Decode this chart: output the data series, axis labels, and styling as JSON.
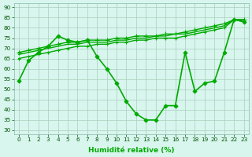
{
  "title": "",
  "xlabel": "Humidité relative (%)",
  "ylabel": "",
  "bg_color": "#d8f5ee",
  "grid_color": "#aacfbb",
  "line_color": "#00aa00",
  "xlim": [
    -0.5,
    23.5
  ],
  "ylim": [
    28,
    92
  ],
  "yticks": [
    30,
    35,
    40,
    45,
    50,
    55,
    60,
    65,
    70,
    75,
    80,
    85,
    90
  ],
  "xticks": [
    0,
    1,
    2,
    3,
    4,
    5,
    6,
    7,
    8,
    9,
    10,
    11,
    12,
    13,
    14,
    15,
    16,
    17,
    18,
    19,
    20,
    21,
    22,
    23
  ],
  "series": [
    {
      "x": [
        0,
        1,
        2,
        3,
        4,
        5,
        6,
        7,
        8,
        9,
        10,
        11,
        12,
        13,
        14,
        15,
        16,
        17,
        18,
        19,
        20,
        21,
        22,
        23
      ],
      "y": [
        54,
        64,
        68,
        71,
        76,
        74,
        73,
        74,
        66,
        60,
        53,
        44,
        38,
        35,
        35,
        42,
        42,
        68,
        49,
        53,
        54,
        68,
        84,
        83
      ],
      "marker": "D",
      "markersize": 2.5,
      "linewidth": 1.2,
      "linestyle": "-"
    },
    {
      "x": [
        0,
        1,
        2,
        3,
        4,
        5,
        6,
        7,
        8,
        9,
        10,
        11,
        12,
        13,
        14,
        15,
        16,
        17,
        18,
        19,
        20,
        21,
        22,
        23
      ],
      "y": [
        68,
        69,
        70,
        71,
        72,
        73,
        73,
        74,
        74,
        74,
        75,
        75,
        76,
        76,
        76,
        77,
        77,
        78,
        79,
        80,
        81,
        82,
        84,
        84
      ],
      "marker": "+",
      "markersize": 4,
      "linewidth": 1.0,
      "linestyle": "-"
    },
    {
      "x": [
        0,
        1,
        2,
        3,
        4,
        5,
        6,
        7,
        8,
        9,
        10,
        11,
        12,
        13,
        14,
        15,
        16,
        17,
        18,
        19,
        20,
        21,
        22,
        23
      ],
      "y": [
        67,
        68,
        69,
        70,
        71,
        72,
        72,
        73,
        73,
        73,
        74,
        74,
        75,
        75,
        76,
        76,
        77,
        77,
        78,
        79,
        80,
        81,
        84,
        84
      ],
      "marker": null,
      "markersize": 0,
      "linewidth": 1.0,
      "linestyle": "-"
    },
    {
      "x": [
        0,
        1,
        2,
        3,
        4,
        5,
        6,
        7,
        8,
        9,
        10,
        11,
        12,
        13,
        14,
        15,
        16,
        17,
        18,
        19,
        20,
        21,
        22,
        23
      ],
      "y": [
        65,
        66,
        67,
        68,
        69,
        70,
        71,
        71,
        72,
        72,
        73,
        73,
        74,
        74,
        75,
        75,
        75,
        76,
        77,
        78,
        79,
        80,
        84,
        83
      ],
      "marker": "+",
      "markersize": 3,
      "linewidth": 1.0,
      "linestyle": "-"
    }
  ],
  "xlabel_fontsize": 6.5,
  "tick_fontsize": 5.2,
  "figsize": [
    3.2,
    2.0
  ],
  "dpi": 100
}
